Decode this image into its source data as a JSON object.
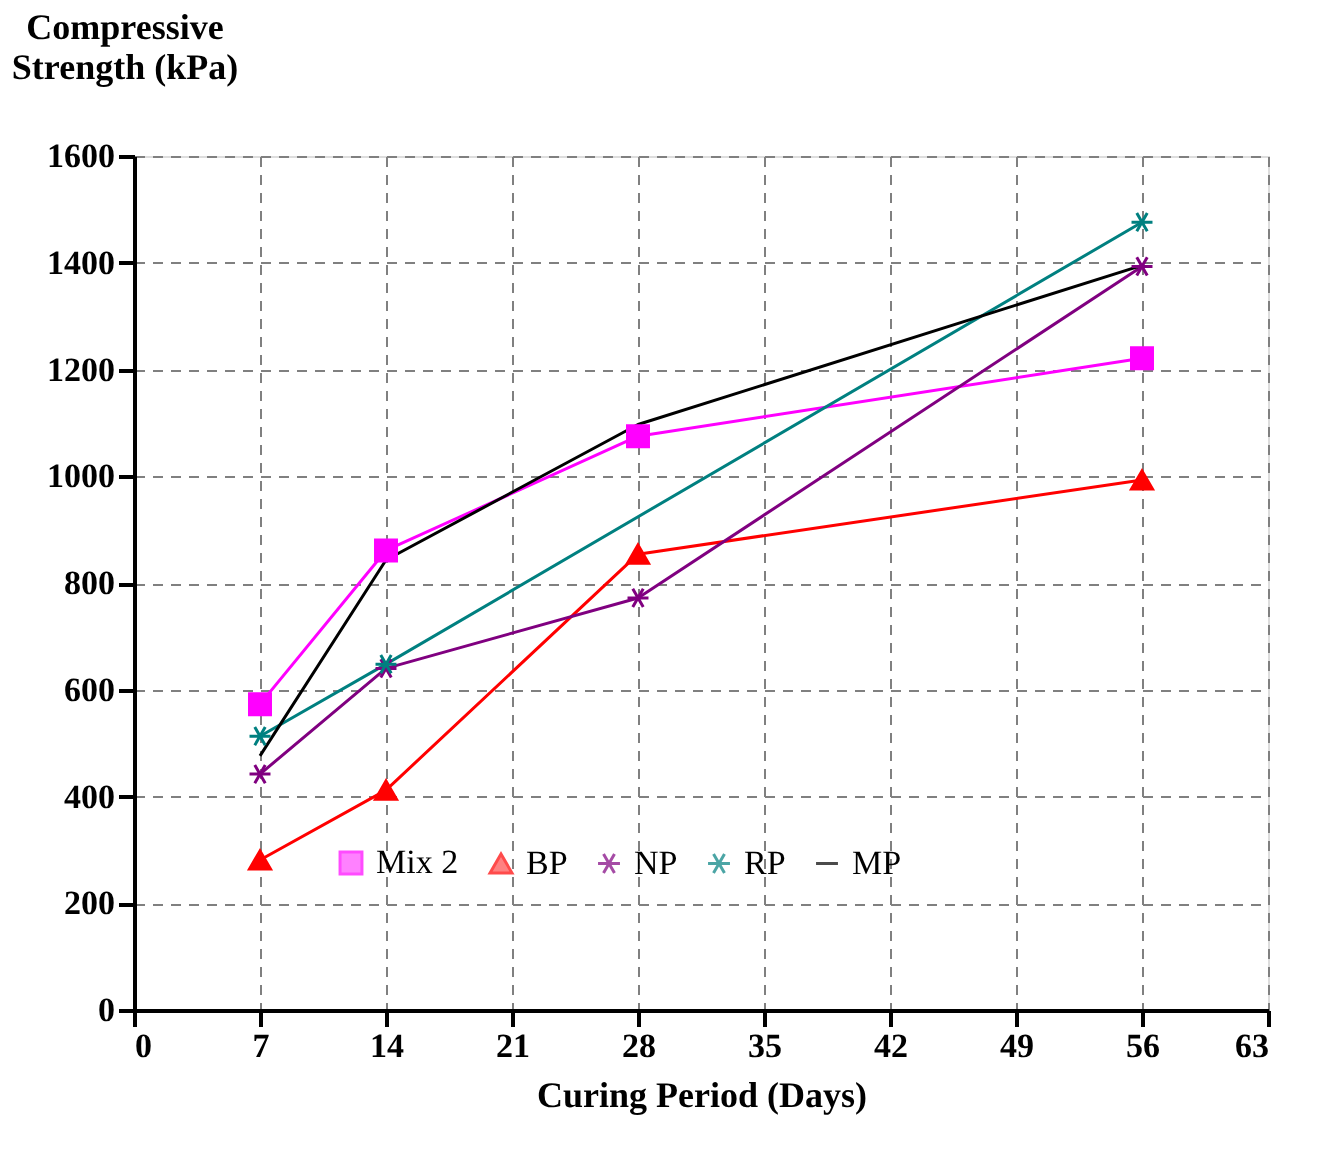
{
  "chart_data": {
    "type": "line",
    "xlabel": "Curing Period (Days)",
    "ylabel": "Compressive Strength (kPa)",
    "x": [
      7,
      14,
      28,
      56
    ],
    "series": [
      {
        "name": "Mix 2",
        "color": "#ff00ff",
        "marker": "square",
        "values": [
          573,
          861,
          1075,
          1221
        ]
      },
      {
        "name": "BP",
        "color": "#ff0000",
        "marker": "triangle",
        "values": [
          281,
          412,
          854,
          993
        ]
      },
      {
        "name": "NP",
        "color": "#800080",
        "marker": "cross",
        "values": [
          442,
          640,
          772,
          1393
        ]
      },
      {
        "name": "RP",
        "color": "#008080",
        "marker": "cross",
        "x": [
          7,
          14,
          56
        ],
        "values": [
          513,
          648,
          1476
        ]
      },
      {
        "name": "MP",
        "color": "#000000",
        "marker": "none",
        "values": [
          476,
          843,
          1097,
          1395
        ]
      }
    ],
    "xlim": [
      0,
      63
    ],
    "xticks": [
      0,
      7,
      14,
      21,
      28,
      35,
      42,
      49,
      56,
      63
    ],
    "ylim": [
      0,
      1600
    ],
    "yticks": [
      0,
      200,
      400,
      600,
      800,
      1000,
      1200,
      1400,
      1600
    ],
    "grid": true,
    "legend": "bottom",
    "line_style": "solid"
  }
}
